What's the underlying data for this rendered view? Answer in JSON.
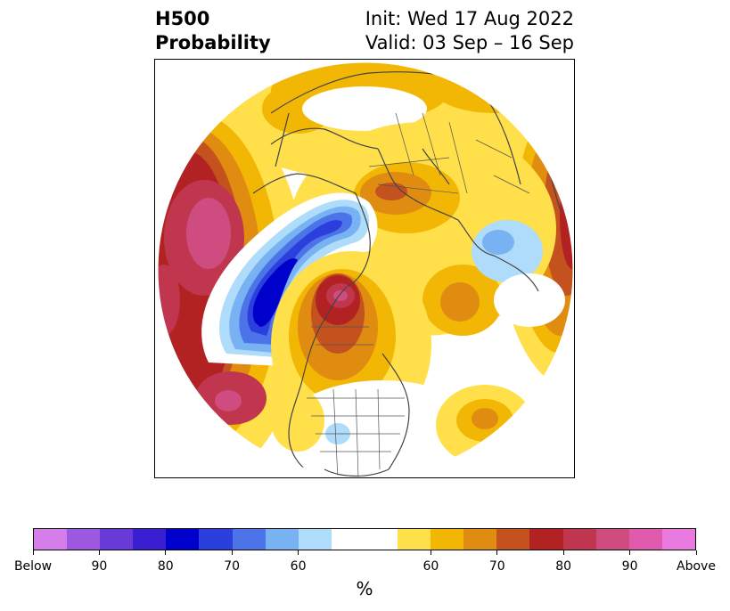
{
  "header": {
    "title_line1": "H500",
    "title_line2": "Probability",
    "init": "Init: Wed 17 Aug 2022",
    "valid": "Valid: 03 Sep – 16 Sep"
  },
  "colorbar": {
    "unit": "%",
    "segments": [
      {
        "color": "#d57de9"
      },
      {
        "color": "#9c59e0"
      },
      {
        "color": "#6a3ad9"
      },
      {
        "color": "#3a1ed1"
      },
      {
        "color": "#0000cc"
      },
      {
        "color": "#2a3fdc"
      },
      {
        "color": "#4c74e8"
      },
      {
        "color": "#79b2f2"
      },
      {
        "color": "#aedcfa"
      },
      {
        "color": "#ffffff"
      },
      {
        "color": "#ffffff"
      },
      {
        "color": "#ffe04a"
      },
      {
        "color": "#f2b705"
      },
      {
        "color": "#e08c10"
      },
      {
        "color": "#c4521f"
      },
      {
        "color": "#b22222"
      },
      {
        "color": "#c1364f"
      },
      {
        "color": "#cf4c80"
      },
      {
        "color": "#e05aad"
      },
      {
        "color": "#e87ae0"
      }
    ],
    "labels": [
      "Below",
      "90",
      "80",
      "70",
      "60",
      "60",
      "70",
      "80",
      "90",
      "Above"
    ]
  }
}
